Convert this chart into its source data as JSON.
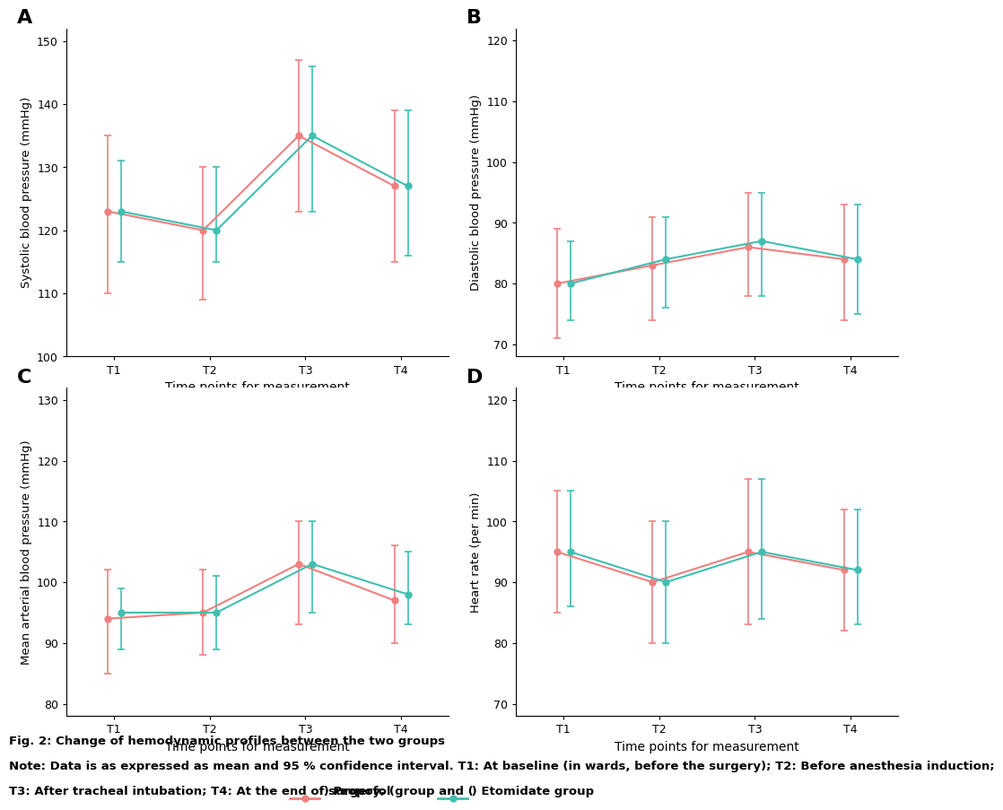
{
  "time_points": [
    "T1",
    "T2",
    "T3",
    "T4"
  ],
  "propofol_color": "#F08080",
  "etomidate_color": "#40BFB0",
  "panels": {
    "A": {
      "title": "A",
      "ylabel": "Systolic blood pressure (mmHg)",
      "ylim": [
        100,
        152
      ],
      "yticks": [
        100,
        110,
        120,
        130,
        140,
        150
      ],
      "propofol_mean": [
        123,
        120,
        135,
        127
      ],
      "propofol_lo": [
        110,
        109,
        123,
        115
      ],
      "propofol_hi": [
        135,
        130,
        147,
        139
      ],
      "etomidate_mean": [
        123,
        120,
        135,
        127
      ],
      "etomidate_lo": [
        115,
        115,
        123,
        116
      ],
      "etomidate_hi": [
        131,
        130,
        146,
        139
      ]
    },
    "B": {
      "title": "B",
      "ylabel": "Diastolic blood pressure (mmHg)",
      "ylim": [
        68,
        122
      ],
      "yticks": [
        70,
        80,
        90,
        100,
        110,
        120
      ],
      "propofol_mean": [
        80,
        83,
        86,
        84
      ],
      "propofol_lo": [
        71,
        74,
        78,
        74
      ],
      "propofol_hi": [
        89,
        91,
        95,
        93
      ],
      "etomidate_mean": [
        80,
        84,
        87,
        84
      ],
      "etomidate_lo": [
        74,
        76,
        78,
        75
      ],
      "etomidate_hi": [
        87,
        91,
        95,
        93
      ]
    },
    "C": {
      "title": "C",
      "ylabel": "Mean arterial blood pressure (mmHg)",
      "ylim": [
        78,
        132
      ],
      "yticks": [
        80,
        90,
        100,
        110,
        120,
        130
      ],
      "propofol_mean": [
        94,
        95,
        103,
        97
      ],
      "propofol_lo": [
        85,
        88,
        93,
        90
      ],
      "propofol_hi": [
        102,
        102,
        110,
        106
      ],
      "etomidate_mean": [
        95,
        95,
        103,
        98
      ],
      "etomidate_lo": [
        89,
        89,
        95,
        93
      ],
      "etomidate_hi": [
        99,
        101,
        110,
        105
      ]
    },
    "D": {
      "title": "D",
      "ylabel": "Heart rate (per min)",
      "ylim": [
        68,
        122
      ],
      "yticks": [
        70,
        80,
        90,
        100,
        110,
        120
      ],
      "propofol_mean": [
        95,
        90,
        95,
        92
      ],
      "propofol_lo": [
        85,
        80,
        83,
        82
      ],
      "propofol_hi": [
        105,
        100,
        107,
        102
      ],
      "etomidate_mean": [
        95,
        90,
        95,
        92
      ],
      "etomidate_lo": [
        86,
        80,
        84,
        83
      ],
      "etomidate_hi": [
        105,
        100,
        107,
        102
      ]
    }
  },
  "xlabel": "Time points for measurement",
  "caption_line1": "Fig. 2: Change of hemodynamic profiles between the two groups",
  "caption_line2": "Note: Data is as expressed as mean and 95 % confidence interval. T1: At baseline (in wards, before the surgery); T2: Before anesthesia induction;",
  "caption_line3_pre": "T3: After tracheal intubation; T4: At the end of surgery; ( ",
  "caption_line3_mid": " ) Propofol group and ( ",
  "caption_line3_end": " ) Etomidate group"
}
